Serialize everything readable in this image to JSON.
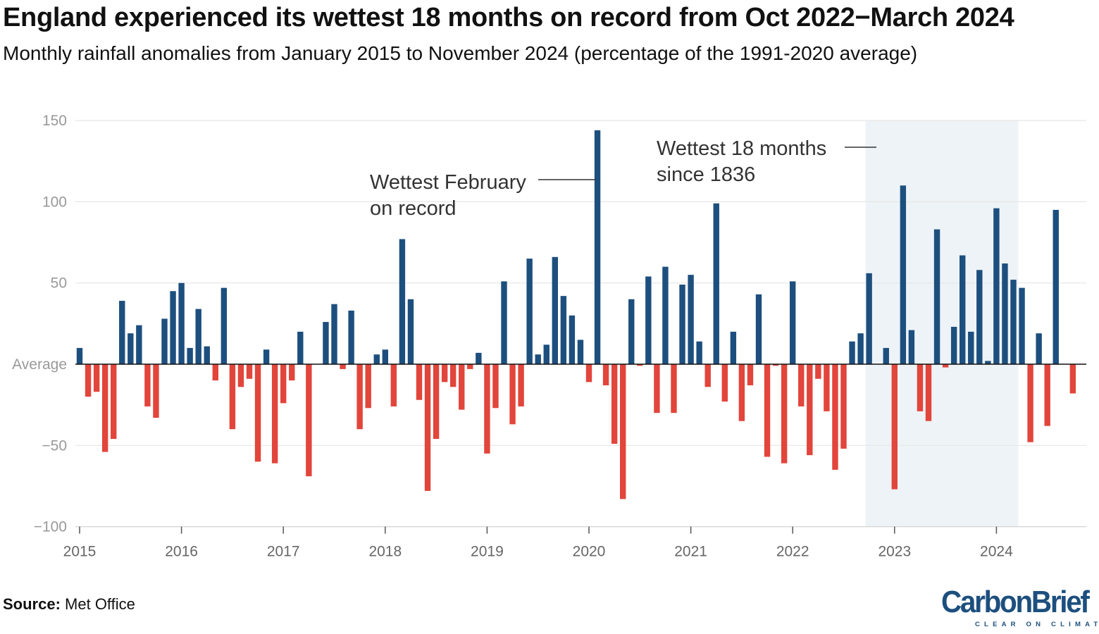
{
  "title": "England experienced its wettest 18 months on record from Oct 2022−March 2024",
  "subtitle": "Monthly rainfall anomalies from January 2015 to November 2024 (percentage of the 1991-2020 average)",
  "source_label": "Source:",
  "source_text": " Met Office",
  "logo": {
    "word": "CarbonBrief",
    "tagline": "CLEAR ON CLIMATE"
  },
  "colors": {
    "positive": "#1d4f7e",
    "negative": "#e2453b",
    "highlight": "#eef3f7",
    "grid": "#e6e6e6"
  },
  "chart_data": {
    "type": "bar",
    "title": "England experienced its wettest 18 months on record from Oct 2022−March 2024",
    "ylim": [
      -100,
      150
    ],
    "yticks": [
      {
        "value": 150,
        "label": "150"
      },
      {
        "value": 100,
        "label": "100"
      },
      {
        "value": 50,
        "label": "50"
      },
      {
        "value": 0,
        "label": "Average"
      },
      {
        "value": -50,
        "label": "−50"
      },
      {
        "value": -100,
        "label": "−100"
      }
    ],
    "xticks": [
      "2015",
      "2016",
      "2017",
      "2018",
      "2019",
      "2020",
      "2021",
      "2022",
      "2023",
      "2024"
    ],
    "start": "2015-01",
    "end": "2024-11",
    "highlight_range": [
      "2022-10",
      "2024-03"
    ],
    "annotations": [
      {
        "text": [
          "Wettest February",
          "on record"
        ],
        "month": "2020-02"
      },
      {
        "text": [
          "Wettest 18 months",
          "since 1836"
        ],
        "month": "2022-10"
      }
    ],
    "values": [
      10,
      -20,
      -17,
      -54,
      -46,
      39,
      19,
      24,
      -26,
      -33,
      28,
      45,
      50,
      10,
      34,
      11,
      -10,
      47,
      -40,
      -14,
      -9,
      -60,
      9,
      -61,
      -24,
      -10,
      20,
      -69,
      0,
      26,
      37,
      -3,
      33,
      -40,
      -27,
      6,
      9,
      -26,
      77,
      40,
      -22,
      -78,
      -46,
      -11,
      -14,
      -28,
      -3,
      7,
      -55,
      -27,
      51,
      -37,
      -26,
      65,
      6,
      12,
      66,
      42,
      30,
      15,
      -11,
      144,
      -13,
      -49,
      -83,
      40,
      -1,
      54,
      -30,
      60,
      -30,
      49,
      55,
      14,
      -14,
      99,
      -23,
      20,
      -35,
      -13,
      43,
      -57,
      -1,
      -61,
      51,
      -26,
      -56,
      -9,
      -29,
      -65,
      -52,
      14,
      19,
      56,
      0,
      10,
      -77,
      110,
      21,
      -29,
      -35,
      83,
      -2,
      23,
      67,
      20,
      58,
      2,
      96,
      62,
      52,
      47,
      -48,
      19,
      -38,
      95,
      0,
      -18
    ]
  }
}
